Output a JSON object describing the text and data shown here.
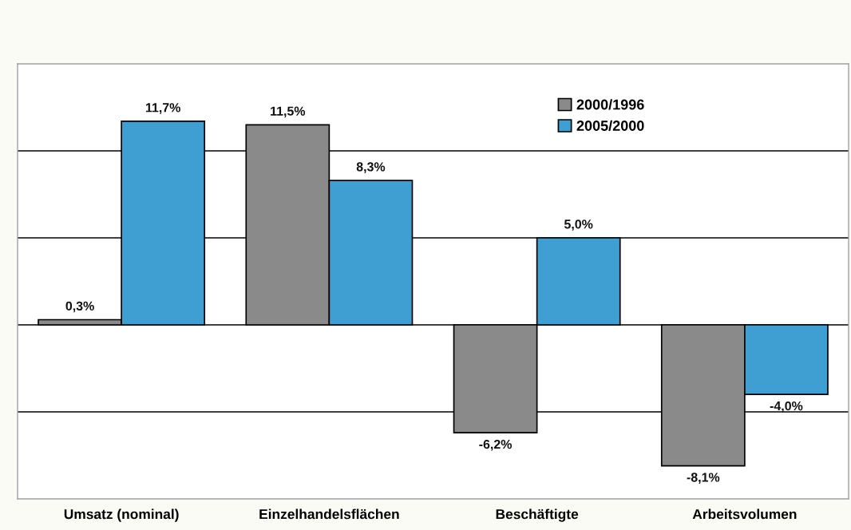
{
  "chart_data": {
    "type": "bar",
    "categories": [
      "Umsatz (nominal)",
      "Einzelhandelsflächen",
      "Beschäftigte",
      "Arbeitsvolumen"
    ],
    "series": [
      {
        "name": "2000/1996",
        "color": "#8a8a8a",
        "values": [
          0.3,
          11.5,
          -6.2,
          -8.1
        ],
        "value_labels": [
          "0,3%",
          "11,5%",
          "-6,2%",
          "-8,1%"
        ]
      },
      {
        "name": "2005/2000",
        "color": "#3f9fd2",
        "values": [
          11.7,
          8.3,
          5.0,
          -4.0
        ],
        "value_labels": [
          "11,7%",
          "8,3%",
          "5,0%",
          "-4,0%"
        ]
      }
    ],
    "ylim": [
      -10,
      15
    ],
    "yticks": [
      {
        "value": -5,
        "label": null
      },
      {
        "value": 0,
        "label": null
      },
      {
        "value": 5,
        "label": null
      },
      {
        "value": 10,
        "label": null
      }
    ],
    "grid": "y",
    "legend": "top right",
    "tick_labels": "x"
  }
}
